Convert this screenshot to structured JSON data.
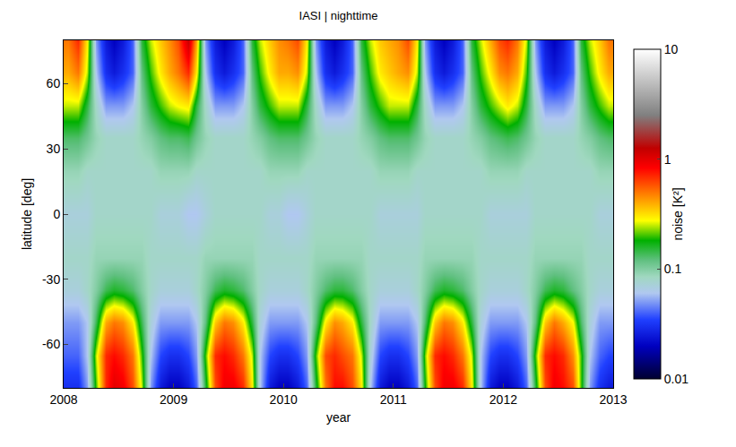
{
  "chart_data": {
    "type": "heatmap",
    "title": "IASI | nighttime",
    "x_label": "year",
    "y_label": "latitude [deg]",
    "x": [
      2008.04,
      2008.13,
      2008.21,
      2008.29,
      2008.38,
      2008.46,
      2008.54,
      2008.63,
      2008.71,
      2008.79,
      2008.88,
      2008.96,
      2009.04,
      2009.13,
      2009.21,
      2009.29,
      2009.38,
      2009.46,
      2009.54,
      2009.63,
      2009.71,
      2009.79,
      2009.88,
      2009.96,
      2010.04,
      2010.13,
      2010.21,
      2010.29,
      2010.38,
      2010.46,
      2010.54,
      2010.63,
      2010.71,
      2010.79,
      2010.88,
      2010.96,
      2011.04,
      2011.13,
      2011.21,
      2011.29,
      2011.38,
      2011.46,
      2011.54,
      2011.63,
      2011.71,
      2011.79,
      2011.88,
      2011.96,
      2012.04,
      2012.13,
      2012.21,
      2012.29,
      2012.38,
      2012.46,
      2012.54,
      2012.63,
      2012.71,
      2012.79,
      2012.88,
      2012.96
    ],
    "y": [
      -80,
      -65,
      -50,
      -35,
      -20,
      0,
      20,
      35,
      50,
      65,
      80
    ],
    "values": [
      [
        0.03,
        0.03,
        0.05,
        0.2,
        0.7,
        1.0,
        0.9,
        0.6,
        0.25,
        0.05,
        0.025,
        0.02,
        0.02,
        0.025,
        0.04,
        0.15,
        0.6,
        0.9,
        0.9,
        0.7,
        0.3,
        0.06,
        0.025,
        0.02,
        0.02,
        0.025,
        0.04,
        0.15,
        0.5,
        0.8,
        0.8,
        0.6,
        0.3,
        0.06,
        0.025,
        0.02,
        0.02,
        0.025,
        0.04,
        0.18,
        0.6,
        0.9,
        0.9,
        0.7,
        0.3,
        0.06,
        0.025,
        0.02,
        0.02,
        0.025,
        0.04,
        0.15,
        0.6,
        0.9,
        0.8,
        0.6,
        0.2,
        0.05,
        0.03,
        0.025
      ],
      [
        0.04,
        0.04,
        0.06,
        0.25,
        0.7,
        0.8,
        0.7,
        0.5,
        0.2,
        0.06,
        0.035,
        0.03,
        0.03,
        0.035,
        0.05,
        0.2,
        0.7,
        0.8,
        0.7,
        0.5,
        0.25,
        0.06,
        0.035,
        0.03,
        0.03,
        0.035,
        0.05,
        0.2,
        0.6,
        0.7,
        0.6,
        0.5,
        0.25,
        0.07,
        0.035,
        0.03,
        0.03,
        0.035,
        0.05,
        0.22,
        0.7,
        0.8,
        0.7,
        0.5,
        0.25,
        0.06,
        0.035,
        0.03,
        0.03,
        0.035,
        0.05,
        0.2,
        0.7,
        0.8,
        0.7,
        0.45,
        0.2,
        0.06,
        0.04,
        0.035
      ],
      [
        0.05,
        0.05,
        0.06,
        0.14,
        0.4,
        0.5,
        0.45,
        0.3,
        0.14,
        0.07,
        0.05,
        0.05,
        0.05,
        0.05,
        0.06,
        0.12,
        0.35,
        0.5,
        0.45,
        0.3,
        0.15,
        0.07,
        0.05,
        0.05,
        0.05,
        0.05,
        0.06,
        0.12,
        0.3,
        0.45,
        0.4,
        0.3,
        0.15,
        0.08,
        0.05,
        0.05,
        0.05,
        0.05,
        0.06,
        0.13,
        0.35,
        0.5,
        0.45,
        0.3,
        0.15,
        0.07,
        0.05,
        0.05,
        0.05,
        0.05,
        0.06,
        0.12,
        0.35,
        0.5,
        0.4,
        0.28,
        0.13,
        0.07,
        0.05,
        0.05
      ],
      [
        0.07,
        0.07,
        0.08,
        0.1,
        0.14,
        0.16,
        0.15,
        0.13,
        0.1,
        0.08,
        0.07,
        0.07,
        0.07,
        0.07,
        0.08,
        0.1,
        0.14,
        0.16,
        0.15,
        0.13,
        0.1,
        0.08,
        0.07,
        0.07,
        0.07,
        0.07,
        0.08,
        0.1,
        0.13,
        0.15,
        0.15,
        0.13,
        0.1,
        0.08,
        0.07,
        0.07,
        0.07,
        0.07,
        0.08,
        0.1,
        0.14,
        0.16,
        0.15,
        0.13,
        0.1,
        0.08,
        0.07,
        0.07,
        0.07,
        0.07,
        0.08,
        0.1,
        0.14,
        0.16,
        0.15,
        0.12,
        0.1,
        0.08,
        0.07,
        0.07
      ],
      [
        0.08,
        0.08,
        0.08,
        0.09,
        0.09,
        0.09,
        0.09,
        0.09,
        0.09,
        0.08,
        0.08,
        0.08,
        0.08,
        0.08,
        0.08,
        0.09,
        0.09,
        0.09,
        0.09,
        0.09,
        0.09,
        0.08,
        0.08,
        0.08,
        0.08,
        0.08,
        0.08,
        0.09,
        0.09,
        0.09,
        0.09,
        0.09,
        0.09,
        0.08,
        0.08,
        0.08,
        0.08,
        0.08,
        0.08,
        0.09,
        0.09,
        0.09,
        0.09,
        0.09,
        0.09,
        0.08,
        0.08,
        0.08,
        0.08,
        0.08,
        0.08,
        0.09,
        0.09,
        0.09,
        0.09,
        0.09,
        0.09,
        0.08,
        0.08,
        0.08
      ],
      [
        0.07,
        0.07,
        0.07,
        0.08,
        0.08,
        0.08,
        0.08,
        0.08,
        0.08,
        0.08,
        0.07,
        0.07,
        0.07,
        0.06,
        0.06,
        0.07,
        0.08,
        0.08,
        0.08,
        0.08,
        0.08,
        0.08,
        0.07,
        0.07,
        0.06,
        0.06,
        0.07,
        0.08,
        0.08,
        0.08,
        0.08,
        0.08,
        0.08,
        0.08,
        0.07,
        0.07,
        0.07,
        0.07,
        0.07,
        0.08,
        0.08,
        0.08,
        0.08,
        0.08,
        0.08,
        0.08,
        0.07,
        0.07,
        0.07,
        0.07,
        0.07,
        0.08,
        0.08,
        0.08,
        0.08,
        0.08,
        0.08,
        0.08,
        0.07,
        0.07
      ],
      [
        0.09,
        0.09,
        0.08,
        0.08,
        0.08,
        0.08,
        0.08,
        0.08,
        0.08,
        0.08,
        0.09,
        0.09,
        0.09,
        0.09,
        0.08,
        0.08,
        0.08,
        0.08,
        0.08,
        0.08,
        0.08,
        0.08,
        0.09,
        0.09,
        0.09,
        0.09,
        0.08,
        0.08,
        0.08,
        0.08,
        0.08,
        0.08,
        0.08,
        0.08,
        0.09,
        0.09,
        0.09,
        0.09,
        0.08,
        0.08,
        0.08,
        0.08,
        0.08,
        0.08,
        0.08,
        0.08,
        0.09,
        0.09,
        0.09,
        0.09,
        0.08,
        0.08,
        0.08,
        0.08,
        0.08,
        0.08,
        0.08,
        0.08,
        0.09,
        0.09
      ],
      [
        0.13,
        0.13,
        0.11,
        0.09,
        0.08,
        0.08,
        0.08,
        0.08,
        0.09,
        0.1,
        0.12,
        0.13,
        0.13,
        0.14,
        0.11,
        0.09,
        0.08,
        0.08,
        0.08,
        0.08,
        0.09,
        0.1,
        0.12,
        0.13,
        0.13,
        0.13,
        0.11,
        0.09,
        0.08,
        0.08,
        0.08,
        0.08,
        0.09,
        0.1,
        0.12,
        0.13,
        0.13,
        0.13,
        0.11,
        0.09,
        0.08,
        0.08,
        0.08,
        0.08,
        0.09,
        0.1,
        0.12,
        0.13,
        0.14,
        0.13,
        0.11,
        0.09,
        0.08,
        0.08,
        0.08,
        0.08,
        0.09,
        0.1,
        0.12,
        0.13
      ],
      [
        0.25,
        0.25,
        0.15,
        0.08,
        0.05,
        0.05,
        0.05,
        0.06,
        0.1,
        0.15,
        0.2,
        0.25,
        0.28,
        0.3,
        0.15,
        0.08,
        0.05,
        0.05,
        0.05,
        0.06,
        0.1,
        0.15,
        0.2,
        0.25,
        0.25,
        0.25,
        0.15,
        0.08,
        0.05,
        0.05,
        0.05,
        0.06,
        0.1,
        0.15,
        0.2,
        0.25,
        0.25,
        0.25,
        0.15,
        0.08,
        0.05,
        0.05,
        0.05,
        0.06,
        0.1,
        0.15,
        0.2,
        0.25,
        0.3,
        0.25,
        0.15,
        0.08,
        0.05,
        0.05,
        0.05,
        0.06,
        0.1,
        0.15,
        0.2,
        0.25
      ],
      [
        0.4,
        0.5,
        0.25,
        0.06,
        0.03,
        0.025,
        0.03,
        0.04,
        0.12,
        0.2,
        0.3,
        0.4,
        0.5,
        0.7,
        0.3,
        0.06,
        0.03,
        0.025,
        0.03,
        0.04,
        0.12,
        0.2,
        0.3,
        0.4,
        0.4,
        0.45,
        0.25,
        0.06,
        0.03,
        0.025,
        0.03,
        0.04,
        0.12,
        0.2,
        0.3,
        0.35,
        0.4,
        0.45,
        0.25,
        0.06,
        0.03,
        0.025,
        0.03,
        0.04,
        0.12,
        0.2,
        0.3,
        0.45,
        0.5,
        0.4,
        0.2,
        0.06,
        0.03,
        0.025,
        0.03,
        0.04,
        0.12,
        0.2,
        0.3,
        0.4
      ],
      [
        0.5,
        0.7,
        0.3,
        0.05,
        0.025,
        0.02,
        0.025,
        0.04,
        0.15,
        0.25,
        0.35,
        0.45,
        0.6,
        1.2,
        0.4,
        0.05,
        0.025,
        0.02,
        0.025,
        0.04,
        0.15,
        0.25,
        0.35,
        0.45,
        0.5,
        0.6,
        0.3,
        0.05,
        0.025,
        0.02,
        0.025,
        0.04,
        0.15,
        0.25,
        0.35,
        0.4,
        0.45,
        0.6,
        0.3,
        0.05,
        0.025,
        0.02,
        0.025,
        0.04,
        0.15,
        0.25,
        0.4,
        0.6,
        0.7,
        0.5,
        0.25,
        0.05,
        0.025,
        0.02,
        0.025,
        0.04,
        0.15,
        0.25,
        0.35,
        0.5
      ]
    ],
    "xlim": [
      2008,
      2013
    ],
    "xticks": [
      2008,
      2009,
      2010,
      2011,
      2012,
      2013
    ],
    "ylim": [
      -80,
      80
    ],
    "yticks": [
      -60,
      -30,
      0,
      30,
      60
    ],
    "colorbar": {
      "label": "noise [K²]",
      "range": [
        0.01,
        10
      ],
      "ticks": [
        0.01,
        0.1,
        1,
        10
      ],
      "log": true
    }
  }
}
